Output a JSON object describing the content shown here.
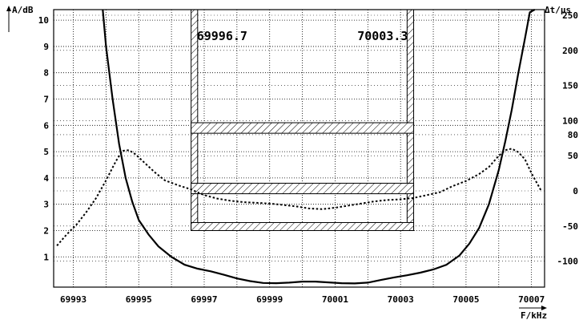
{
  "chart_data": {
    "type": "line",
    "title": "",
    "xlabel": "F/kHz",
    "ylabel": "A/dB",
    "y2label": "Δt/µs",
    "xlim": [
      69992.4,
      70007.4
    ],
    "ylim": [
      -0.15,
      10.4
    ],
    "y2lim": [
      -137,
      258
    ],
    "grid": true,
    "x_ticks": [
      69993,
      69995,
      69997,
      69999,
      70001,
      70003,
      70005,
      70007
    ],
    "x_tick_labels": [
      "69993",
      "69995",
      "69997",
      "69999",
      "70001",
      "70003",
      "70005",
      "70007"
    ],
    "y_ticks": [
      1,
      2,
      3,
      4,
      5,
      6,
      7,
      8,
      9,
      10
    ],
    "y_tick_labels": [
      "1",
      "2",
      "3",
      "4",
      "5",
      "6",
      "7",
      "8",
      "9",
      "10"
    ],
    "y2_ticks": [
      -100,
      -50,
      0,
      50,
      80,
      100,
      150,
      200,
      250
    ],
    "y2_tick_labels": [
      "-100",
      "-50",
      "0",
      "50",
      "80",
      "100",
      "150",
      "200",
      "250"
    ],
    "annotations": [
      {
        "text": "69996.7",
        "x": 69996.7
      },
      {
        "text": "70003.3",
        "x": 70003.3
      }
    ],
    "series": [
      {
        "axis": "left",
        "style": "solid",
        "x": [
          69993.9,
          69994.0,
          69994.2,
          69994.4,
          69994.6,
          69994.8,
          69995.0,
          69995.3,
          69995.6,
          69996.0,
          69996.4,
          69996.8,
          69997.2,
          69997.6,
          69998.0,
          69998.4,
          69998.8,
          69999.2,
          69999.6,
          70000.0,
          70000.4,
          70000.8,
          70001.2,
          70001.6,
          70002.0,
          70002.4,
          70002.8,
          70003.2,
          70003.6,
          70004.0,
          70004.4,
          70004.8,
          70005.1,
          70005.4,
          70005.7,
          70006.0,
          70006.2,
          70006.4,
          70006.6,
          70006.8,
          70006.95,
          70007.1
        ],
        "y": [
          10.5,
          9.0,
          7.0,
          5.3,
          4.0,
          3.1,
          2.4,
          1.85,
          1.4,
          1.0,
          0.7,
          0.55,
          0.45,
          0.32,
          0.18,
          0.08,
          0.01,
          0.0,
          0.02,
          0.06,
          0.06,
          0.03,
          0.0,
          -0.01,
          0.02,
          0.12,
          0.22,
          0.3,
          0.4,
          0.52,
          0.7,
          1.05,
          1.5,
          2.1,
          3.0,
          4.3,
          5.4,
          6.6,
          8.0,
          9.3,
          10.3,
          10.6
        ]
      },
      {
        "axis": "right",
        "style": "dotted",
        "x": [
          69992.5,
          69992.8,
          69993.1,
          69993.4,
          69993.7,
          69994.0,
          69994.3,
          69994.5,
          69994.7,
          69994.9,
          69995.2,
          69995.5,
          69995.8,
          69996.2,
          69996.6,
          69997.0,
          69997.4,
          69997.8,
          69998.2,
          69998.6,
          69999.0,
          69999.4,
          69999.8,
          70000.2,
          70000.6,
          70001.0,
          70001.4,
          70001.8,
          70002.2,
          70002.6,
          70003.0,
          70003.4,
          70003.8,
          70004.2,
          70004.6,
          70005.0,
          70005.4,
          70005.7,
          70006.0,
          70006.2,
          70006.4,
          70006.6,
          70006.8,
          70007.0,
          70007.3
        ],
        "y": [
          -78,
          -62,
          -48,
          -30,
          -10,
          15,
          42,
          57,
          58,
          52,
          39,
          26,
          15,
          8,
          2,
          -6,
          -11,
          -14,
          -16,
          -17,
          -18,
          -20,
          -22,
          -25,
          -26,
          -24,
          -21,
          -18,
          -15,
          -13,
          -12,
          -10,
          -6,
          -2,
          7,
          14,
          24,
          34,
          50,
          58,
          60,
          55,
          45,
          25,
          0
        ]
      }
    ],
    "tolerance_mask": {
      "x_band_low": [
        69996.6,
        69996.8
      ],
      "x_band_high": [
        70003.2,
        70003.4
      ],
      "y_limit_low": 2.0,
      "band1_dB": [
        3.4,
        3.8
      ],
      "band2_dB": [
        5.7,
        6.1
      ]
    }
  }
}
